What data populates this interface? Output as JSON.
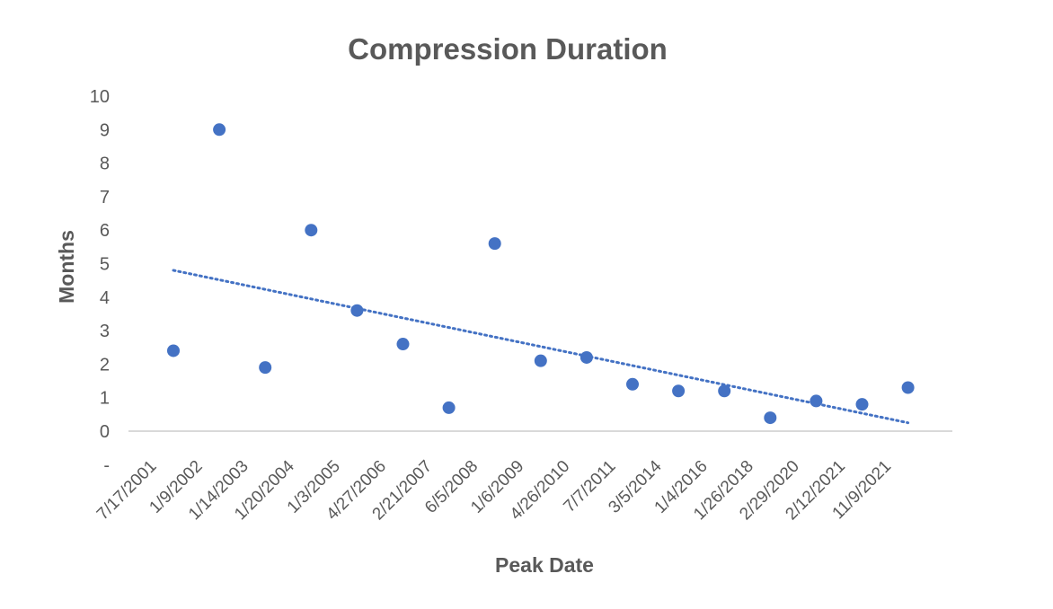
{
  "chart_data": {
    "type": "scatter",
    "title": "Compression Duration",
    "xlabel": "Peak Date",
    "ylabel": "Months",
    "categories": [
      "7/17/2001",
      "1/9/2002",
      "1/14/2003",
      "1/20/2004",
      "1/3/2005",
      "4/27/2006",
      "2/21/2007",
      "6/5/2008",
      "1/6/2009",
      "4/26/2010",
      "7/7/2011",
      "3/5/2014",
      "1/4/2016",
      "1/26/2018",
      "2/29/2020",
      "2/12/2021",
      "11/9/2021"
    ],
    "series": [
      {
        "values": [
          2.4,
          9,
          1.9,
          6,
          3.6,
          2.6,
          0.7,
          5.6,
          2.1,
          2.2,
          1.4,
          1.2,
          1.2,
          0.4,
          0.9,
          0.8,
          1.3
        ]
      }
    ],
    "yticks": [
      "10",
      "9",
      "8",
      "7",
      "6",
      "5",
      "4",
      "3",
      "2",
      "1",
      "0",
      "-"
    ],
    "ylim": [
      0,
      10
    ],
    "trendline": {
      "type": "linear",
      "style": "dotted",
      "start": 4.8,
      "end": 0.25
    },
    "grid": false,
    "colors": {
      "marker": "#4472C4",
      "trendline": "#4472C4",
      "text": "#595959",
      "axis": "#D9D9D9"
    }
  }
}
